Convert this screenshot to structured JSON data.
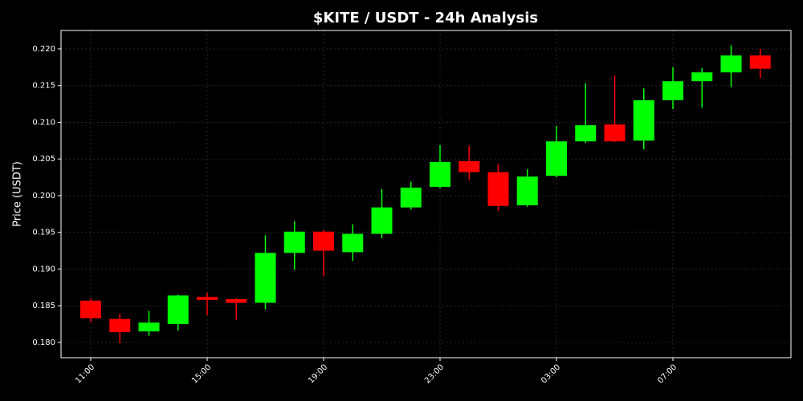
{
  "chart_data": {
    "type": "candlestick",
    "title": "$KITE / USDT - 24h Analysis",
    "y_label": "Price (USDT)",
    "categories": [
      "11:00",
      null,
      null,
      null,
      "15:00",
      null,
      null,
      null,
      "19:00",
      null,
      null,
      null,
      "23:00",
      null,
      null,
      null,
      "03:00",
      null,
      null,
      null,
      "07:00",
      null,
      null,
      null
    ],
    "open": [
      0.1857,
      0.1832,
      0.1815,
      0.1825,
      0.1862,
      0.1859,
      0.1854,
      0.1922,
      0.1951,
      0.1923,
      0.1948,
      0.1984,
      0.2012,
      0.2047,
      0.2032,
      0.1987,
      0.2027,
      0.2074,
      0.2097,
      0.2075,
      0.213,
      0.2156,
      0.2168,
      0.2191
    ],
    "high": [
      0.186,
      0.1839,
      0.1843,
      0.1865,
      0.1868,
      0.186,
      0.1946,
      0.1965,
      0.1953,
      0.1961,
      0.2009,
      0.2019,
      0.2069,
      0.2068,
      0.2043,
      0.2036,
      0.2095,
      0.2153,
      0.2164,
      0.2146,
      0.2175,
      0.2174,
      0.2205,
      0.22
    ],
    "low": [
      0.1828,
      0.1799,
      0.1809,
      0.1816,
      0.1837,
      0.1831,
      0.1845,
      0.1899,
      0.189,
      0.1911,
      0.1942,
      0.1981,
      0.201,
      0.2022,
      0.1979,
      0.1985,
      0.2025,
      0.2072,
      0.2073,
      0.2063,
      0.2118,
      0.212,
      0.2148,
      0.216
    ],
    "close": [
      0.1833,
      0.1814,
      0.1827,
      0.1864,
      0.1858,
      0.1854,
      0.1922,
      0.1951,
      0.1925,
      0.1948,
      0.1984,
      0.2011,
      0.2046,
      0.2032,
      0.1986,
      0.2026,
      0.2074,
      0.2096,
      0.2074,
      0.213,
      0.2156,
      0.2168,
      0.2191,
      0.2173
    ],
    "up_color": "#00ff00",
    "down_color": "#ff0000",
    "ylim": [
      0.17792,
      0.22251
    ],
    "yticks": [
      {
        "value": 0.18,
        "label": "0.180"
      },
      0.185,
      {
        "value": 0.19,
        "label": "0.190"
      },
      0.195,
      {
        "value": 0.2,
        "label": "0.200"
      },
      0.205,
      {
        "value": 0.21,
        "label": "0.210"
      },
      0.215,
      {
        "value": 0.22,
        "label": "0.220"
      }
    ],
    "grid": true
  }
}
